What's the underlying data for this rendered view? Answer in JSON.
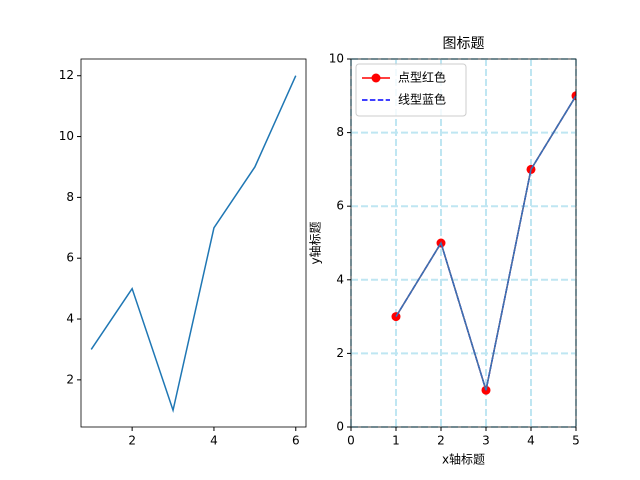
{
  "chart_data": [
    {
      "type": "line",
      "x": [
        1,
        2,
        3,
        4,
        5,
        6
      ],
      "series": [
        {
          "color": "#1f77b4",
          "values": [
            3,
            5,
            1,
            7,
            9,
            12
          ]
        }
      ],
      "xlim": [
        0.75,
        6.25
      ],
      "ylim": [
        0.45,
        12.55
      ],
      "xticks": [
        2,
        4,
        6
      ],
      "yticks": [
        2,
        4,
        6,
        8,
        10,
        12
      ],
      "grid": false
    },
    {
      "type": "line",
      "title": "图标题",
      "x_label": "x轴标题",
      "y_label": "y轴标题",
      "x": [
        1,
        2,
        3,
        4,
        5
      ],
      "series": [
        {
          "name": "点型红色",
          "color": "#ff0000",
          "marker": "o",
          "linestyle": "solid",
          "values": [
            3,
            5,
            1,
            7,
            9
          ]
        },
        {
          "name": "线型蓝色",
          "color": "#0000ff",
          "linestyle": "dashed",
          "values": [
            3,
            5,
            1,
            7,
            9
          ]
        },
        {
          "color": "#3b75af",
          "linestyle": "solid",
          "values": [
            3,
            5,
            1,
            7,
            9
          ]
        }
      ],
      "xlim": [
        0,
        5
      ],
      "ylim": [
        0,
        10
      ],
      "xticks": [
        0,
        1,
        2,
        3,
        4,
        5
      ],
      "yticks": [
        0,
        2,
        4,
        6,
        8,
        10
      ],
      "grid": true,
      "grid_color": "#bfe6f2",
      "legend": "upper left"
    }
  ]
}
